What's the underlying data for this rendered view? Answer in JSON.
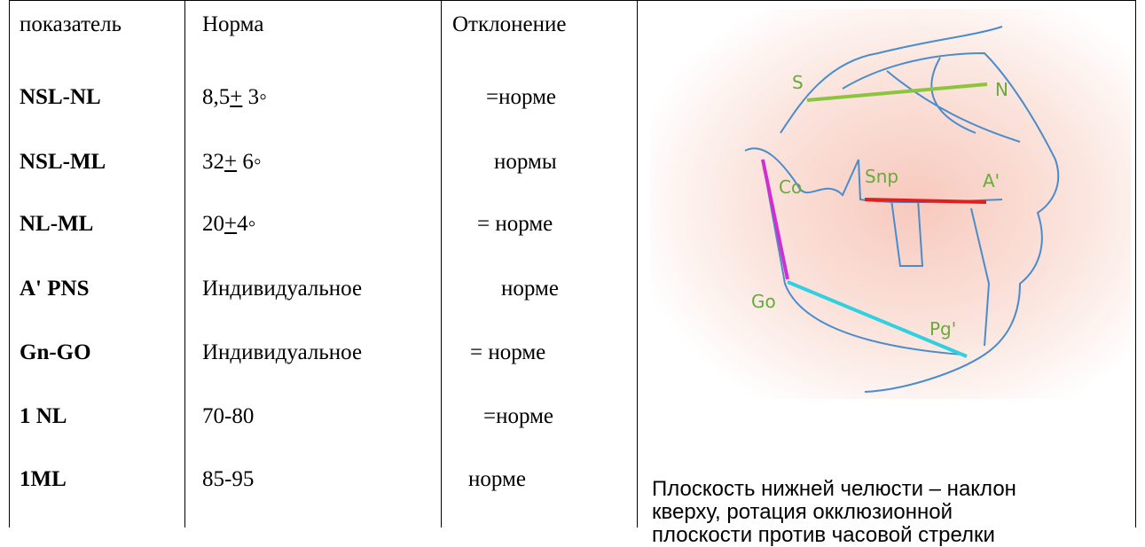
{
  "table": {
    "header": [
      "показатель",
      "Норма",
      "Отклонение"
    ],
    "rows": [
      {
        "indicator": "NSL-NL",
        "norm": {
          "before": "8,5",
          "pm": "+",
          "after": " 3◦"
        },
        "deviation": "=норме"
      },
      {
        "indicator": "NSL-ML",
        "norm": {
          "before": "32",
          "pm": "+",
          "after": " 6◦"
        },
        "deviation": "нормы"
      },
      {
        "indicator": "NL-ML",
        "norm": {
          "before": "20",
          "pm": "+",
          "after": "4◦"
        },
        "deviation": "= норме"
      },
      {
        "indicator": "A' PNS",
        "norm": "Индивидуальное",
        "deviation": "норме"
      },
      {
        "indicator": "Gn-GO",
        "norm": "Индивидуальное",
        "deviation": "= норме"
      },
      {
        "indicator": "1 NL",
        "norm": "70-80",
        "deviation": "=норме"
      },
      {
        "indicator": "1ML",
        "norm": "85-95",
        "deviation": "норме"
      }
    ]
  },
  "figure": {
    "labels": [
      "S",
      "N",
      "Co",
      "Snp",
      "A'",
      "Go",
      "Pg'"
    ]
  },
  "caption": [
    "Плоскость нижней челюсти – наклон",
    "кверху, ротация окклюзионной",
    "плоскости против часовой стрелки"
  ]
}
